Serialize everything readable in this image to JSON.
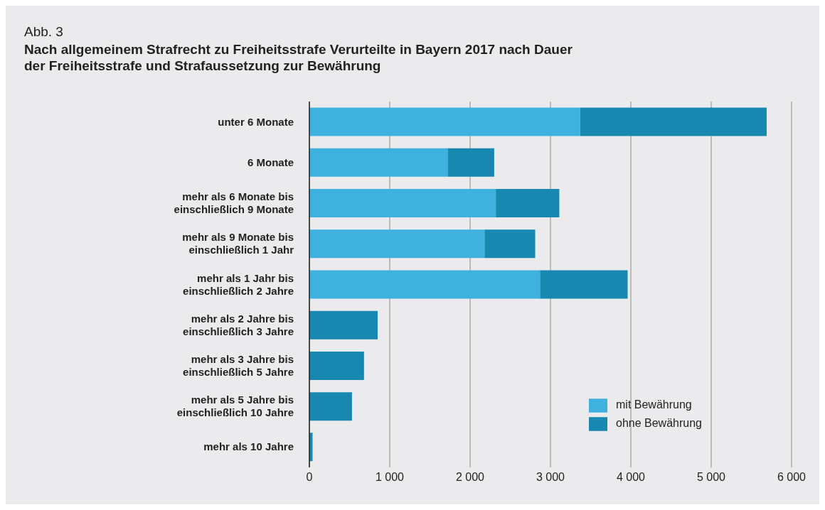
{
  "chart_data": {
    "type": "bar",
    "orientation": "horizontal",
    "stacked": true,
    "title": "Nach allgemeinem Strafrecht zu Freiheitsstrafe Verurteilte in Bayern 2017 nach Dauer der Freiheitsstrafe und Strafaussetzung zur Bewährung",
    "annotations": [
      "Abb. 3"
    ],
    "categories": [
      "unter 6 Monate",
      "6 Monate",
      "mehr als 6 Monate bis einschließlich 9 Monate",
      "mehr als 9 Monate bis einschließlich 1 Jahr",
      "mehr als 1 Jahr bis einschließlich 2 Jahre",
      "mehr als 2 Jahre bis einschließlich 3 Jahre",
      "mehr als 3 Jahre bis einschließlich 5 Jahre",
      "mehr als 5 Jahre bis einschließlich 10 Jahre",
      "mehr als 10 Jahre"
    ],
    "series": [
      {
        "name": "mit Bewährung",
        "color": "#3fb1de",
        "values": [
          3370,
          1720,
          2320,
          2180,
          2870,
          null,
          null,
          null,
          null
        ]
      },
      {
        "name": "ohne Bewährung",
        "color": "#1888b0",
        "values": [
          2320,
          580,
          790,
          630,
          1090,
          850,
          680,
          530,
          40
        ]
      }
    ],
    "xlim": [
      0,
      6000
    ],
    "xticks": [
      0,
      {
        "value": 1000,
        "label": "1 000"
      },
      {
        "value": 2000,
        "label": "2 000"
      },
      {
        "value": 3000,
        "label": "3 000"
      },
      {
        "value": 4000,
        "label": "4 000"
      },
      {
        "value": 5000,
        "label": "5 000"
      },
      {
        "value": 6000,
        "label": "6 000"
      }
    ],
    "grid": "x",
    "legend": "bottom right"
  }
}
